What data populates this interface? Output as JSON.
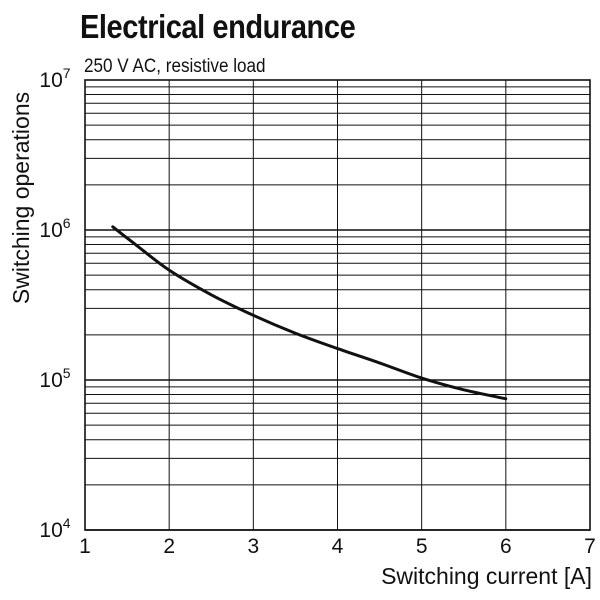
{
  "chart_data": {
    "type": "line",
    "title": "Electrical endurance",
    "subtitle": "250 V AC, resistive load",
    "xlabel": "Switching current [A]",
    "ylabel": "Switching operations",
    "xlim": [
      1,
      7
    ],
    "ylim": [
      10000,
      10000000
    ],
    "yscale": "log",
    "x_ticks": [
      "1",
      "2",
      "3",
      "4",
      "5",
      "6",
      "7"
    ],
    "y_ticks": [
      {
        "base": "10",
        "exp": "4"
      },
      {
        "base": "10",
        "exp": "5"
      },
      {
        "base": "10",
        "exp": "6"
      },
      {
        "base": "10",
        "exp": "7"
      }
    ],
    "grid": true,
    "series": [
      {
        "x": [
          1.33,
          1.6,
          2.0,
          2.5,
          3.0,
          3.5,
          4.0,
          4.5,
          5.0,
          5.5,
          6.0
        ],
        "y": [
          1050000,
          800000,
          540000,
          370000,
          270000,
          205000,
          162000,
          130000,
          103000,
          86000,
          75000
        ]
      }
    ]
  }
}
